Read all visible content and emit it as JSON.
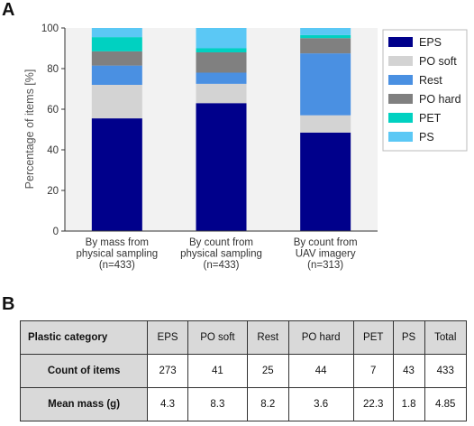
{
  "panels": {
    "a": "A",
    "b": "B"
  },
  "chart_data": {
    "type": "bar",
    "stacked": true,
    "ylabel": "Percentage of items [%]",
    "ylim": [
      0,
      100
    ],
    "yticks": [
      0,
      20,
      40,
      60,
      80,
      100
    ],
    "grid": false,
    "legend_position": "right",
    "categories": [
      [
        "By mass from",
        "physical sampling",
        "(n=433)"
      ],
      [
        "By count from",
        "physical sampling",
        "(n=433)"
      ],
      [
        "By count from",
        "UAV imagery",
        "(n=313)"
      ]
    ],
    "series": [
      {
        "name": "EPS",
        "color": "#00008b",
        "values": [
          55.5,
          63.0,
          48.5
        ]
      },
      {
        "name": "PO soft",
        "color": "#d3d3d3",
        "values": [
          16.5,
          9.5,
          8.5
        ]
      },
      {
        "name": "Rest",
        "color": "#4a90e2",
        "values": [
          9.5,
          5.5,
          30.5
        ]
      },
      {
        "name": "PO hard",
        "color": "#808080",
        "values": [
          7.0,
          10.0,
          7.5
        ]
      },
      {
        "name": "PET",
        "color": "#00d1c1",
        "values": [
          7.0,
          2.0,
          1.5
        ]
      },
      {
        "name": "PS",
        "color": "#5bc8f5",
        "values": [
          4.5,
          10.0,
          3.5
        ]
      }
    ]
  },
  "table": {
    "header": [
      "Plastic category",
      "EPS",
      "PO soft",
      "Rest",
      "PO hard",
      "PET",
      "PS",
      "Total"
    ],
    "rows": [
      [
        "Count of items",
        "273",
        "41",
        "25",
        "44",
        "7",
        "43",
        "433"
      ],
      [
        "Mean mass (g)",
        "4.3",
        "8.3",
        "8.2",
        "3.6",
        "22.3",
        "1.8",
        "4.85"
      ]
    ]
  }
}
